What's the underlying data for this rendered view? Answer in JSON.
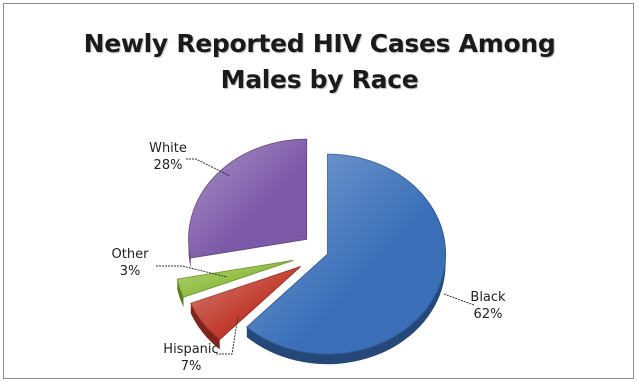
{
  "chart_data": {
    "type": "pie",
    "title_lines": [
      "Newly Reported HIV Cases Among",
      "Males by Race"
    ],
    "slices": [
      {
        "label": "Black",
        "value": 62,
        "value_label": "62%",
        "color": "#3a6fb8"
      },
      {
        "label": "Hispanic",
        "value": 7,
        "value_label": "7%",
        "color": "#c0392b"
      },
      {
        "label": "Other",
        "value": 3,
        "value_label": "3%",
        "color": "#8dbb3a"
      },
      {
        "label": "White",
        "value": 28,
        "value_label": "28%",
        "color": "#7d5aa8"
      }
    ],
    "exploded": true,
    "style": "3d",
    "legend": "none",
    "data_labels": "outside-with-leader-lines"
  }
}
